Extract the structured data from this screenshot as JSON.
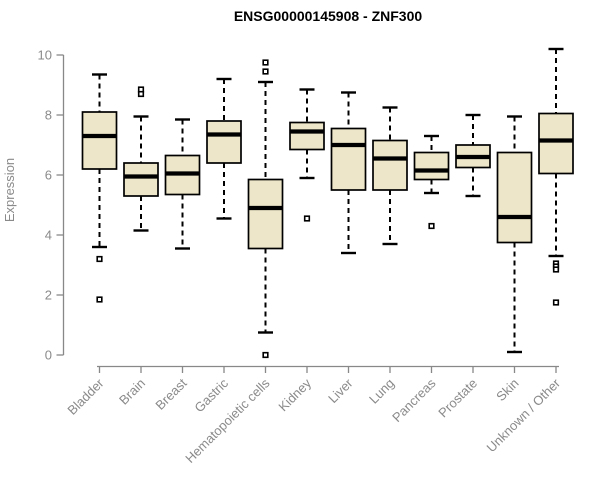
{
  "page": {
    "background": "#ffffff"
  },
  "chart_data": {
    "type": "boxplot",
    "title": "ENSG00000145908 - ZNF300",
    "ylabel": "Expression",
    "xlabel": "",
    "ylim": [
      0,
      10.5
    ],
    "yticks": [
      0,
      2,
      4,
      6,
      8,
      10
    ],
    "grid": false,
    "legend": false,
    "categories": [
      "Bladder",
      "Brain",
      "Breast",
      "Gastric",
      "Hematopoietic cells",
      "Kidney",
      "Liver",
      "Lung",
      "Pancreas",
      "Prostate",
      "Skin",
      "Unknown / Other"
    ],
    "series": [
      {
        "name": "Bladder",
        "whisker_low": 3.6,
        "q1": 6.2,
        "median": 7.3,
        "q3": 8.1,
        "whisker_high": 9.35,
        "outliers": [
          3.2,
          1.85
        ]
      },
      {
        "name": "Brain",
        "whisker_low": 4.15,
        "q1": 5.3,
        "median": 5.95,
        "q3": 6.4,
        "whisker_high": 7.95,
        "outliers": [
          8.85,
          8.7
        ]
      },
      {
        "name": "Breast",
        "whisker_low": 3.55,
        "q1": 5.35,
        "median": 6.05,
        "q3": 6.65,
        "whisker_high": 7.85,
        "outliers": []
      },
      {
        "name": "Gastric",
        "whisker_low": 4.55,
        "q1": 6.4,
        "median": 7.35,
        "q3": 7.8,
        "whisker_high": 9.2,
        "outliers": []
      },
      {
        "name": "Hematopoietic cells",
        "whisker_low": 0.75,
        "q1": 3.55,
        "median": 4.9,
        "q3": 5.85,
        "whisker_high": 9.1,
        "outliers": [
          9.75,
          9.45,
          0.0
        ]
      },
      {
        "name": "Kidney",
        "whisker_low": 5.9,
        "q1": 6.85,
        "median": 7.45,
        "q3": 7.75,
        "whisker_high": 8.85,
        "outliers": [
          4.55
        ]
      },
      {
        "name": "Liver",
        "whisker_low": 3.4,
        "q1": 5.5,
        "median": 7.0,
        "q3": 7.55,
        "whisker_high": 8.75,
        "outliers": []
      },
      {
        "name": "Lung",
        "whisker_low": 3.7,
        "q1": 5.5,
        "median": 6.55,
        "q3": 7.15,
        "whisker_high": 8.25,
        "outliers": []
      },
      {
        "name": "Pancreas",
        "whisker_low": 5.4,
        "q1": 5.85,
        "median": 6.15,
        "q3": 6.75,
        "whisker_high": 7.3,
        "outliers": [
          4.3
        ]
      },
      {
        "name": "Prostate",
        "whisker_low": 5.3,
        "q1": 6.25,
        "median": 6.6,
        "q3": 7.0,
        "whisker_high": 8.0,
        "outliers": []
      },
      {
        "name": "Skin",
        "whisker_low": 0.1,
        "q1": 3.75,
        "median": 4.6,
        "q3": 6.75,
        "whisker_high": 7.95,
        "outliers": []
      },
      {
        "name": "Unknown / Other",
        "whisker_low": 3.3,
        "q1": 6.05,
        "median": 7.15,
        "q3": 8.05,
        "whisker_high": 10.2,
        "outliers": [
          3.05,
          2.95,
          2.85,
          1.75
        ]
      }
    ],
    "colors": {
      "box_fill": "#EDE6C9",
      "box_border": "#000000",
      "median": "#000000",
      "whisker": "#000000",
      "outlier_fill": "#FFFFFF",
      "axis": "#888888",
      "tick_label": "#8A8A8A",
      "title": "#000000",
      "background": "#FFFFFF"
    }
  }
}
